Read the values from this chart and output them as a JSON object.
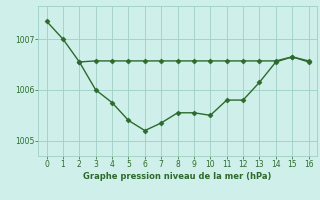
{
  "line1_x": [
    0,
    1,
    2,
    3,
    4,
    5,
    6,
    7,
    8,
    9,
    10,
    11,
    12,
    13,
    14,
    15,
    16
  ],
  "line1_y": [
    1007.35,
    1007.0,
    1006.55,
    1006.0,
    1005.75,
    1005.4,
    1005.2,
    1005.35,
    1005.55,
    1005.55,
    1005.5,
    1005.8,
    1005.8,
    1006.15,
    1006.55,
    1006.65,
    1006.55
  ],
  "line2_x": [
    2,
    3,
    4,
    5,
    6,
    7,
    8,
    9,
    10,
    11,
    12,
    13,
    14,
    15,
    16
  ],
  "line2_y": [
    1006.55,
    1006.57,
    1006.57,
    1006.57,
    1006.57,
    1006.57,
    1006.57,
    1006.57,
    1006.57,
    1006.57,
    1006.57,
    1006.57,
    1006.57,
    1006.65,
    1006.57
  ],
  "line_color": "#2d6a2d",
  "bg_color": "#cff0ea",
  "grid_color": "#9fcfc5",
  "xlabel": "Graphe pression niveau de la mer (hPa)",
  "yticks": [
    1005,
    1006,
    1007
  ],
  "xticks": [
    0,
    1,
    2,
    3,
    4,
    5,
    6,
    7,
    8,
    9,
    10,
    11,
    12,
    13,
    14,
    15,
    16
  ],
  "ylim": [
    1004.7,
    1007.65
  ],
  "xlim": [
    -0.5,
    16.5
  ]
}
